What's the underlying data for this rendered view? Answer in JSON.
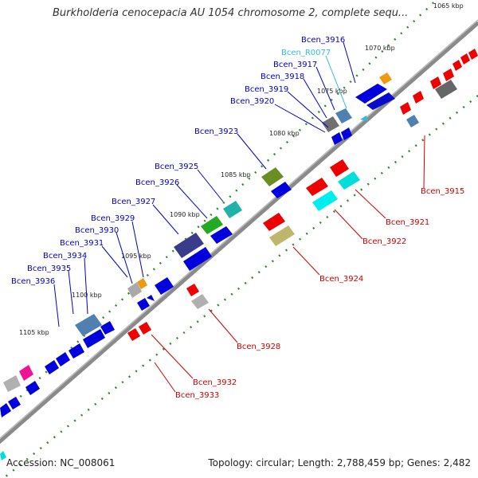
{
  "title": "Burkholderia cenocepacia AU 1054 chromosome 2, complete sequ...",
  "accession_text": "Accession: NC_008061",
  "summary_text": "Topology: circular; Length: 2,788,459 bp; Genes: 2,482",
  "colors": {
    "forward_label": "#0000cc",
    "reverse_label": "#cc0000",
    "rna_label": "#33bbdd",
    "backbone": "#808080",
    "tick": "#2a8c2a"
  },
  "kbp_ticks": [
    "1065 kbp",
    "1070 kbp",
    "1075 kbp",
    "1080 kbp",
    "1085 kbp",
    "1090 kbp",
    "1095 kbp",
    "1100 kbp",
    "1105 kbp"
  ],
  "forward_labels": [
    "Bcen_3916",
    "Bcen_R0077",
    "Bcen_3917",
    "Bcen_3918",
    "Bcen_3919",
    "Bcen_3920",
    "Bcen_3923",
    "Bcen_3925",
    "Bcen_3926",
    "Bcen_3927",
    "Bcen_3929",
    "Bcen_3930",
    "Bcen_3931",
    "Bcen_3934",
    "Bcen_3935",
    "Bcen_3936"
  ],
  "reverse_labels": [
    "Bcen_3915",
    "Bcen_3921",
    "Bcen_3922",
    "Bcen_3924",
    "Bcen_3928",
    "Bcen_3932",
    "Bcen_3933"
  ]
}
